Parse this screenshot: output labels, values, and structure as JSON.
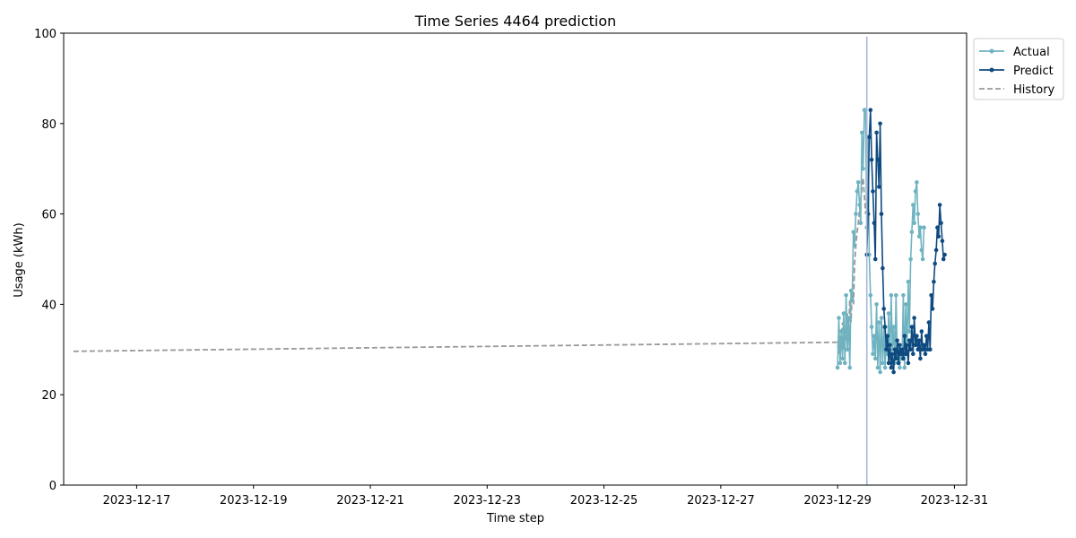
{
  "chart_data": {
    "type": "line",
    "title": "Time Series 4464 prediction",
    "xlabel": "Time step",
    "ylabel": "Usage (kWh)",
    "ylim": [
      0,
      100
    ],
    "xlim": [
      "2023-12-15T18:00",
      "2023-12-31T05:00"
    ],
    "x_ticks": [
      "2023-12-17",
      "2023-12-19",
      "2023-12-21",
      "2023-12-23",
      "2023-12-25",
      "2023-12-27",
      "2023-12-29",
      "2023-12-31"
    ],
    "y_ticks": [
      0,
      20,
      40,
      60,
      80,
      100
    ],
    "legend_position": "outside-top-right",
    "forecast_start": "2023-12-29T12:00",
    "colors": {
      "actual": "#6fb3c0",
      "predict": "#0f4a80",
      "history": "#999999",
      "vline": "#a8b8d8"
    },
    "series": [
      {
        "name": "History",
        "style": "dashed",
        "x": [
          "2023-12-15T22:00",
          "2023-12-29T00:00",
          "2023-12-29T00:30",
          "2023-12-29T01:00",
          "2023-12-29T01:30",
          "2023-12-29T02:00",
          "2023-12-29T02:30",
          "2023-12-29T03:00",
          "2023-12-29T03:30",
          "2023-12-29T04:00",
          "2023-12-29T04:30",
          "2023-12-29T05:00",
          "2023-12-29T05:30",
          "2023-12-29T06:00",
          "2023-12-29T06:30",
          "2023-12-29T07:00",
          "2023-12-29T07:30",
          "2023-12-29T08:00",
          "2023-12-29T08:30",
          "2023-12-29T09:00",
          "2023-12-29T09:30",
          "2023-12-29T10:00",
          "2023-12-29T10:30",
          "2023-12-29T11:00",
          "2023-12-29T11:30"
        ],
        "values": [
          29.6,
          31.6,
          29,
          33,
          31,
          36,
          30,
          34,
          32,
          38,
          33,
          41,
          36,
          43,
          40,
          49,
          53,
          56,
          58,
          61,
          63,
          66,
          68,
          64,
          60
        ]
      },
      {
        "name": "Actual",
        "x": [
          "2023-12-29T00:00",
          "2023-12-29T00:30",
          "2023-12-29T01:00",
          "2023-12-29T01:30",
          "2023-12-29T02:00",
          "2023-12-29T02:30",
          "2023-12-29T03:00",
          "2023-12-29T03:30",
          "2023-12-29T04:00",
          "2023-12-29T04:30",
          "2023-12-29T05:00",
          "2023-12-29T05:30",
          "2023-12-29T06:00",
          "2023-12-29T06:30",
          "2023-12-29T07:00",
          "2023-12-29T07:30",
          "2023-12-29T08:00",
          "2023-12-29T08:30",
          "2023-12-29T09:00",
          "2023-12-29T09:30",
          "2023-12-29T10:00",
          "2023-12-29T10:30",
          "2023-12-29T11:00",
          "2023-12-29T11:30",
          "2023-12-29T12:00",
          "2023-12-29T12:30",
          "2023-12-29T13:00",
          "2023-12-29T13:30",
          "2023-12-29T14:00",
          "2023-12-29T14:30",
          "2023-12-29T15:00",
          "2023-12-29T15:30",
          "2023-12-29T16:00",
          "2023-12-29T16:30",
          "2023-12-29T17:00",
          "2023-12-29T17:30",
          "2023-12-29T18:00",
          "2023-12-29T18:30",
          "2023-12-29T19:00",
          "2023-12-29T19:30",
          "2023-12-29T20:00",
          "2023-12-29T20:30",
          "2023-12-29T21:00",
          "2023-12-29T21:30",
          "2023-12-29T22:00",
          "2023-12-29T22:30",
          "2023-12-29T23:00",
          "2023-12-29T23:30",
          "2023-12-30T00:00",
          "2023-12-30T00:30",
          "2023-12-30T01:00",
          "2023-12-30T01:30",
          "2023-12-30T02:00",
          "2023-12-30T02:30",
          "2023-12-30T03:00",
          "2023-12-30T03:30",
          "2023-12-30T04:00",
          "2023-12-30T04:30",
          "2023-12-30T05:00",
          "2023-12-30T05:30",
          "2023-12-30T06:00",
          "2023-12-30T06:30",
          "2023-12-30T07:00",
          "2023-12-30T07:30",
          "2023-12-30T08:00",
          "2023-12-30T08:30",
          "2023-12-30T09:00",
          "2023-12-30T09:30",
          "2023-12-30T10:00",
          "2023-12-30T10:30",
          "2023-12-30T11:00",
          "2023-12-30T11:30"
        ],
        "values": [
          26,
          37,
          27,
          34,
          28,
          38,
          27,
          42,
          30,
          37,
          26,
          43,
          41,
          56,
          53,
          60,
          65,
          67,
          62,
          58,
          78,
          70,
          83,
          83,
          57,
          77,
          51,
          42,
          35,
          29,
          33,
          28,
          40,
          26,
          36,
          25,
          37,
          27,
          35,
          26,
          33,
          29,
          38,
          28,
          42,
          30,
          35,
          27,
          42,
          28,
          31,
          26,
          30,
          28,
          42,
          26,
          40,
          29,
          45,
          34,
          50,
          56,
          62,
          58,
          65,
          67,
          60,
          55,
          57,
          52,
          50,
          57
        ]
      },
      {
        "name": "Predict",
        "x": [
          "2023-12-29T12:00",
          "2023-12-29T12:30",
          "2023-12-29T13:00",
          "2023-12-29T13:30",
          "2023-12-29T14:00",
          "2023-12-29T14:30",
          "2023-12-29T15:00",
          "2023-12-29T15:30",
          "2023-12-29T16:00",
          "2023-12-29T16:30",
          "2023-12-29T17:00",
          "2023-12-29T17:30",
          "2023-12-29T18:00",
          "2023-12-29T18:30",
          "2023-12-29T19:00",
          "2023-12-29T19:30",
          "2023-12-29T20:00",
          "2023-12-29T20:30",
          "2023-12-29T21:00",
          "2023-12-29T21:30",
          "2023-12-29T22:00",
          "2023-12-29T22:30",
          "2023-12-29T23:00",
          "2023-12-29T23:30",
          "2023-12-30T00:00",
          "2023-12-30T00:30",
          "2023-12-30T01:00",
          "2023-12-30T01:30",
          "2023-12-30T02:00",
          "2023-12-30T02:30",
          "2023-12-30T03:00",
          "2023-12-30T03:30",
          "2023-12-30T04:00",
          "2023-12-30T04:30",
          "2023-12-30T05:00",
          "2023-12-30T05:30",
          "2023-12-30T06:00",
          "2023-12-30T06:30",
          "2023-12-30T07:00",
          "2023-12-30T07:30",
          "2023-12-30T08:00",
          "2023-12-30T08:30",
          "2023-12-30T09:00",
          "2023-12-30T09:30",
          "2023-12-30T10:00",
          "2023-12-30T10:30",
          "2023-12-30T11:00",
          "2023-12-30T11:30",
          "2023-12-30T12:00",
          "2023-12-30T12:30",
          "2023-12-30T13:00",
          "2023-12-30T13:30",
          "2023-12-30T14:00",
          "2023-12-30T14:30",
          "2023-12-30T15:00",
          "2023-12-30T15:30",
          "2023-12-30T16:00",
          "2023-12-30T16:30",
          "2023-12-30T17:00",
          "2023-12-30T17:30",
          "2023-12-30T18:00",
          "2023-12-30T18:30",
          "2023-12-30T19:00",
          "2023-12-30T19:30",
          "2023-12-30T20:00"
        ],
        "values": [
          51,
          60,
          77,
          83,
          72,
          65,
          58,
          50,
          78,
          72,
          66,
          80,
          60,
          48,
          39,
          35,
          30,
          33,
          27,
          31,
          26,
          29,
          25,
          30,
          28,
          32,
          27,
          31,
          29,
          30,
          28,
          33,
          29,
          31,
          27,
          32,
          30,
          35,
          29,
          37,
          31,
          33,
          30,
          32,
          28,
          34,
          30,
          31,
          29,
          33,
          30,
          36,
          30,
          42,
          39,
          45,
          49,
          52,
          57,
          55,
          62,
          58,
          54,
          50,
          51
        ]
      }
    ]
  }
}
